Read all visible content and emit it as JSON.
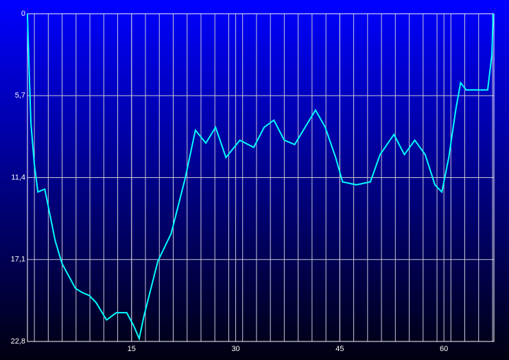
{
  "chart_data": {
    "type": "line",
    "x": [
      0,
      0.2,
      0.5,
      1,
      1.5,
      2.5,
      3,
      4,
      5,
      5.9,
      6.9,
      7.9,
      8.9,
      9.9,
      11.4,
      12.8,
      14.3,
      15.3,
      16.1,
      16.8,
      18.8,
      20.7,
      22.7,
      24.2,
      25.7,
      27.1,
      28.6,
      30.6,
      32.6,
      34.1,
      35.5,
      37,
      38.5,
      40,
      41.5,
      42.9,
      44.4,
      45.4,
      47.4,
      49.4,
      50.8,
      52.8,
      54.3,
      55.8,
      57.3,
      58.7,
      59.7,
      60.7,
      61.7,
      62.4,
      63.2,
      65.2,
      66.3,
      66.9,
      67.1
    ],
    "series": [
      {
        "color": "#00ffff",
        "values": [
          0,
          3.3,
          7.6,
          10.5,
          12.4,
          12.2,
          13.4,
          15.8,
          17.4,
          18.2,
          19.1,
          19.4,
          19.6,
          20.1,
          21.3,
          20.8,
          20.8,
          21.7,
          22.6,
          21.0,
          17.2,
          15.3,
          11.5,
          8.1,
          9.0,
          7.9,
          10.0,
          8.8,
          9.3,
          7.9,
          7.4,
          8.8,
          9.1,
          7.9,
          6.7,
          7.9,
          10.0,
          11.7,
          11.9,
          11.7,
          9.8,
          8.4,
          9.8,
          8.8,
          9.8,
          11.9,
          12.4,
          10.0,
          6.7,
          4.8,
          5.3,
          5.3,
          5.3,
          2.9,
          0
        ]
      }
    ],
    "xlim": [
      0,
      67.2
    ],
    "xticks": [
      15,
      30,
      45,
      60
    ],
    "ylim": [
      22.8,
      0
    ],
    "yticks": [
      0,
      {
        "value": 5.7,
        "label": "5,7"
      },
      {
        "value": 11.4,
        "label": "11,4"
      },
      {
        "value": 17.1,
        "label": "17,1"
      },
      {
        "value": 22.8,
        "label": "22,8"
      }
    ],
    "grid": true
  }
}
